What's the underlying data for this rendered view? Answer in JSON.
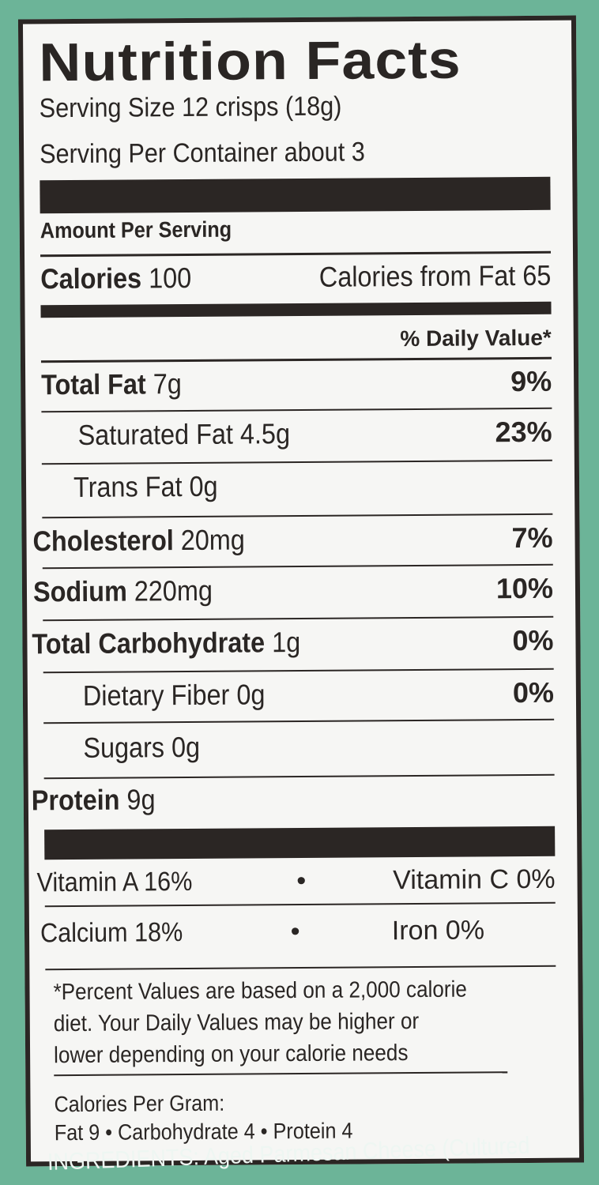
{
  "title": "Nutrition Facts",
  "serving_size": "Serving Size 12 crisps (18g)",
  "servings_per_container": "Serving Per Container about 3",
  "amount_per_serving": "Amount Per Serving",
  "calories": {
    "label": "Calories",
    "value": "100",
    "from_fat": "Calories from Fat 65"
  },
  "daily_value_header": "% Daily Value*",
  "nutrients": [
    {
      "name": "Total Fat",
      "amount": "7g",
      "dv": "9%"
    },
    {
      "name": "Saturated Fat",
      "amount": "4.5g",
      "dv": "23%"
    },
    {
      "name": "Trans Fat",
      "amount": "0g",
      "dv": ""
    },
    {
      "name": "Cholesterol",
      "amount": "20mg",
      "dv": "7%"
    },
    {
      "name": "Sodium",
      "amount": "220mg",
      "dv": "10%"
    },
    {
      "name": "Total Carbohydrate",
      "amount": "1g",
      "dv": "0%"
    },
    {
      "name": "Dietary Fiber",
      "amount": "0g",
      "dv": "0%"
    },
    {
      "name": "Sugars",
      "amount": "0g",
      "dv": ""
    },
    {
      "name": "Protein",
      "amount": "9g",
      "dv": ""
    }
  ],
  "vitamins": {
    "vitamin_a": "Vitamin A 16%",
    "vitamin_c": "Vitamin C 0%",
    "calcium": "Calcium 18%",
    "iron": "Iron 0%",
    "bullet": "•"
  },
  "footnote": [
    "*Percent Values are based on a 2,000 calorie",
    "diet. Your Daily Values may be higher or",
    "lower depending on your calorie needs"
  ],
  "calories_per_gram": {
    "label": "Calories Per Gram:",
    "line": "Fat 9 • Carbohydrate 4 • Protein 4"
  },
  "ingredients_partial": "INGREDIENTS: Aged Parmesan Cheese (Cultured",
  "colors": {
    "background": "#6cb498",
    "label": "#f6f6f4",
    "ink": "#2b2624"
  }
}
